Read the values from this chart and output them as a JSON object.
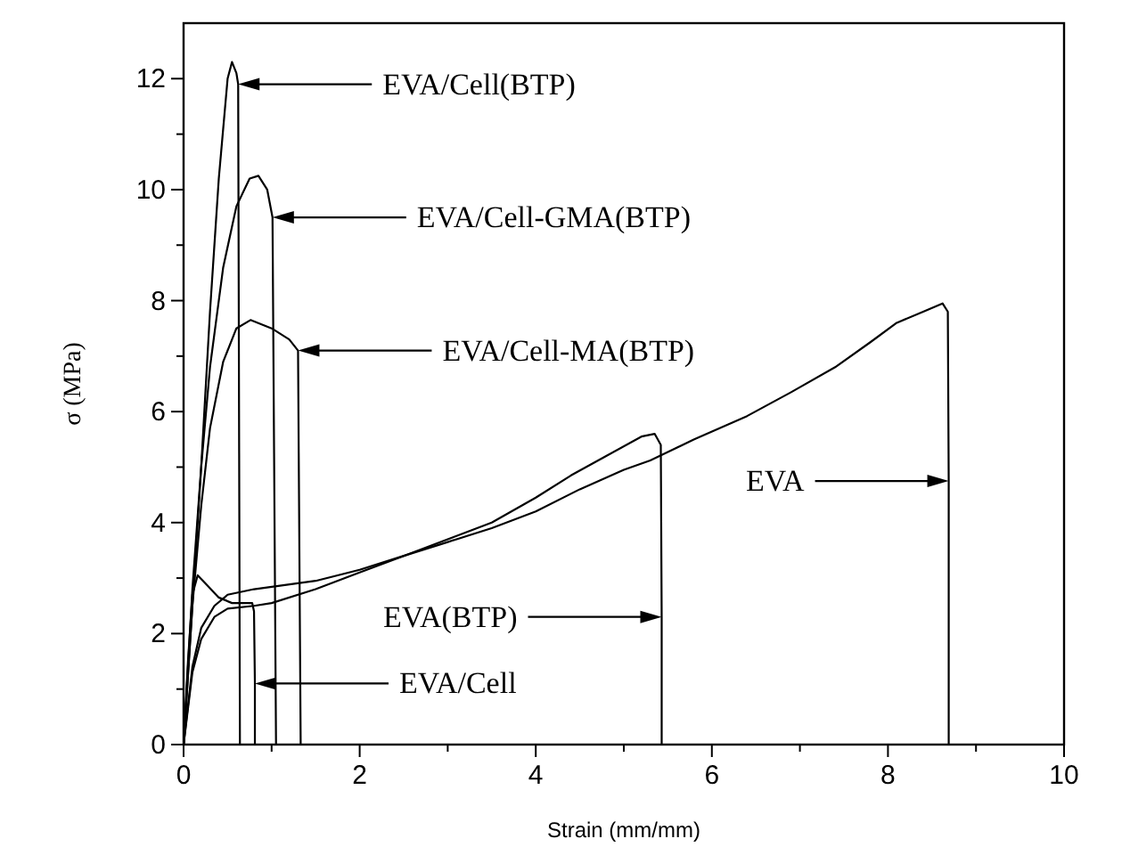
{
  "chart_data": {
    "type": "line",
    "xlabel": "Strain (mm/mm)",
    "ylabel": "σ (MPa)",
    "xlim": [
      0,
      10
    ],
    "ylim": [
      0,
      13
    ],
    "xticks": [
      0,
      {
        "value": 1,
        "label": null
      },
      2,
      {
        "value": 3,
        "label": null
      },
      4,
      {
        "value": 5,
        "label": null
      },
      6,
      {
        "value": 7,
        "label": null
      },
      8,
      {
        "value": 9,
        "label": null
      },
      10
    ],
    "yticks": [
      0,
      {
        "value": 1,
        "label": null
      },
      2,
      {
        "value": 3,
        "label": null
      },
      4,
      {
        "value": 5,
        "label": null
      },
      6,
      {
        "value": 7,
        "label": null
      },
      8,
      {
        "value": 9,
        "label": null
      },
      10,
      {
        "value": 11,
        "label": null
      },
      12
    ],
    "grid": false,
    "legend": "top left",
    "marker": "none",
    "line_style": "solid",
    "series": [
      {
        "name": "EVA/Cell(BTP)",
        "color": "#000000",
        "x": [
          0,
          0.1,
          0.2,
          0.3,
          0.4,
          0.5,
          0.55,
          0.6,
          0.62,
          0.64
        ],
        "values": [
          0,
          2.5,
          5,
          7.8,
          10.2,
          12,
          12.3,
          12.1,
          11.9,
          0
        ]
      },
      {
        "name": "EVA/Cell-GMA(BTP)",
        "color": "#000000",
        "x": [
          0,
          0.1,
          0.2,
          0.3,
          0.45,
          0.6,
          0.75,
          0.85,
          0.95,
          1.01,
          1.05
        ],
        "values": [
          0,
          2.8,
          5,
          6.8,
          8.6,
          9.7,
          10.2,
          10.25,
          10,
          9.5,
          0
        ]
      },
      {
        "name": "EVA/Cell-MA(BTP)",
        "color": "#000000",
        "x": [
          0,
          0.1,
          0.2,
          0.3,
          0.45,
          0.6,
          0.76,
          1.0,
          1.2,
          1.3,
          1.33
        ],
        "values": [
          0,
          2.5,
          4.3,
          5.7,
          6.9,
          7.5,
          7.65,
          7.5,
          7.3,
          7.1,
          0
        ]
      },
      {
        "name": "EVA/Cell",
        "color": "#000000",
        "x": [
          0,
          0.05,
          0.1,
          0.16,
          0.25,
          0.4,
          0.55,
          0.78,
          0.8,
          0.81,
          0.81
        ],
        "values": [
          0,
          1.5,
          2.7,
          3.05,
          2.9,
          2.65,
          2.55,
          2.55,
          2.4,
          1.1,
          0
        ]
      },
      {
        "name": "EVA(BTP)",
        "color": "#000000",
        "x": [
          0,
          0.1,
          0.2,
          0.35,
          0.5,
          0.8,
          1.0,
          1.5,
          2.0,
          2.5,
          3.0,
          3.5,
          4.0,
          4.4,
          4.8,
          5.2,
          5.35,
          5.42,
          5.43,
          5.43
        ],
        "values": [
          0,
          1.3,
          1.9,
          2.3,
          2.45,
          2.5,
          2.55,
          2.8,
          3.1,
          3.4,
          3.7,
          4.0,
          4.45,
          4.85,
          5.2,
          5.55,
          5.6,
          5.4,
          2.3,
          0
        ]
      },
      {
        "name": "EVA",
        "color": "#000000",
        "x": [
          0,
          0.1,
          0.2,
          0.35,
          0.5,
          0.8,
          1.5,
          2.0,
          2.5,
          3.0,
          3.5,
          4.0,
          4.5,
          5.0,
          5.3,
          5.8,
          6.4,
          6.9,
          7.4,
          7.8,
          8.1,
          8.4,
          8.62,
          8.68,
          8.69,
          8.69
        ],
        "values": [
          0,
          1.4,
          2.1,
          2.5,
          2.7,
          2.8,
          2.95,
          3.15,
          3.4,
          3.65,
          3.9,
          4.2,
          4.6,
          4.95,
          5.12,
          5.5,
          5.92,
          6.35,
          6.8,
          7.25,
          7.6,
          7.8,
          7.95,
          7.8,
          4.75,
          0
        ]
      }
    ]
  }
}
